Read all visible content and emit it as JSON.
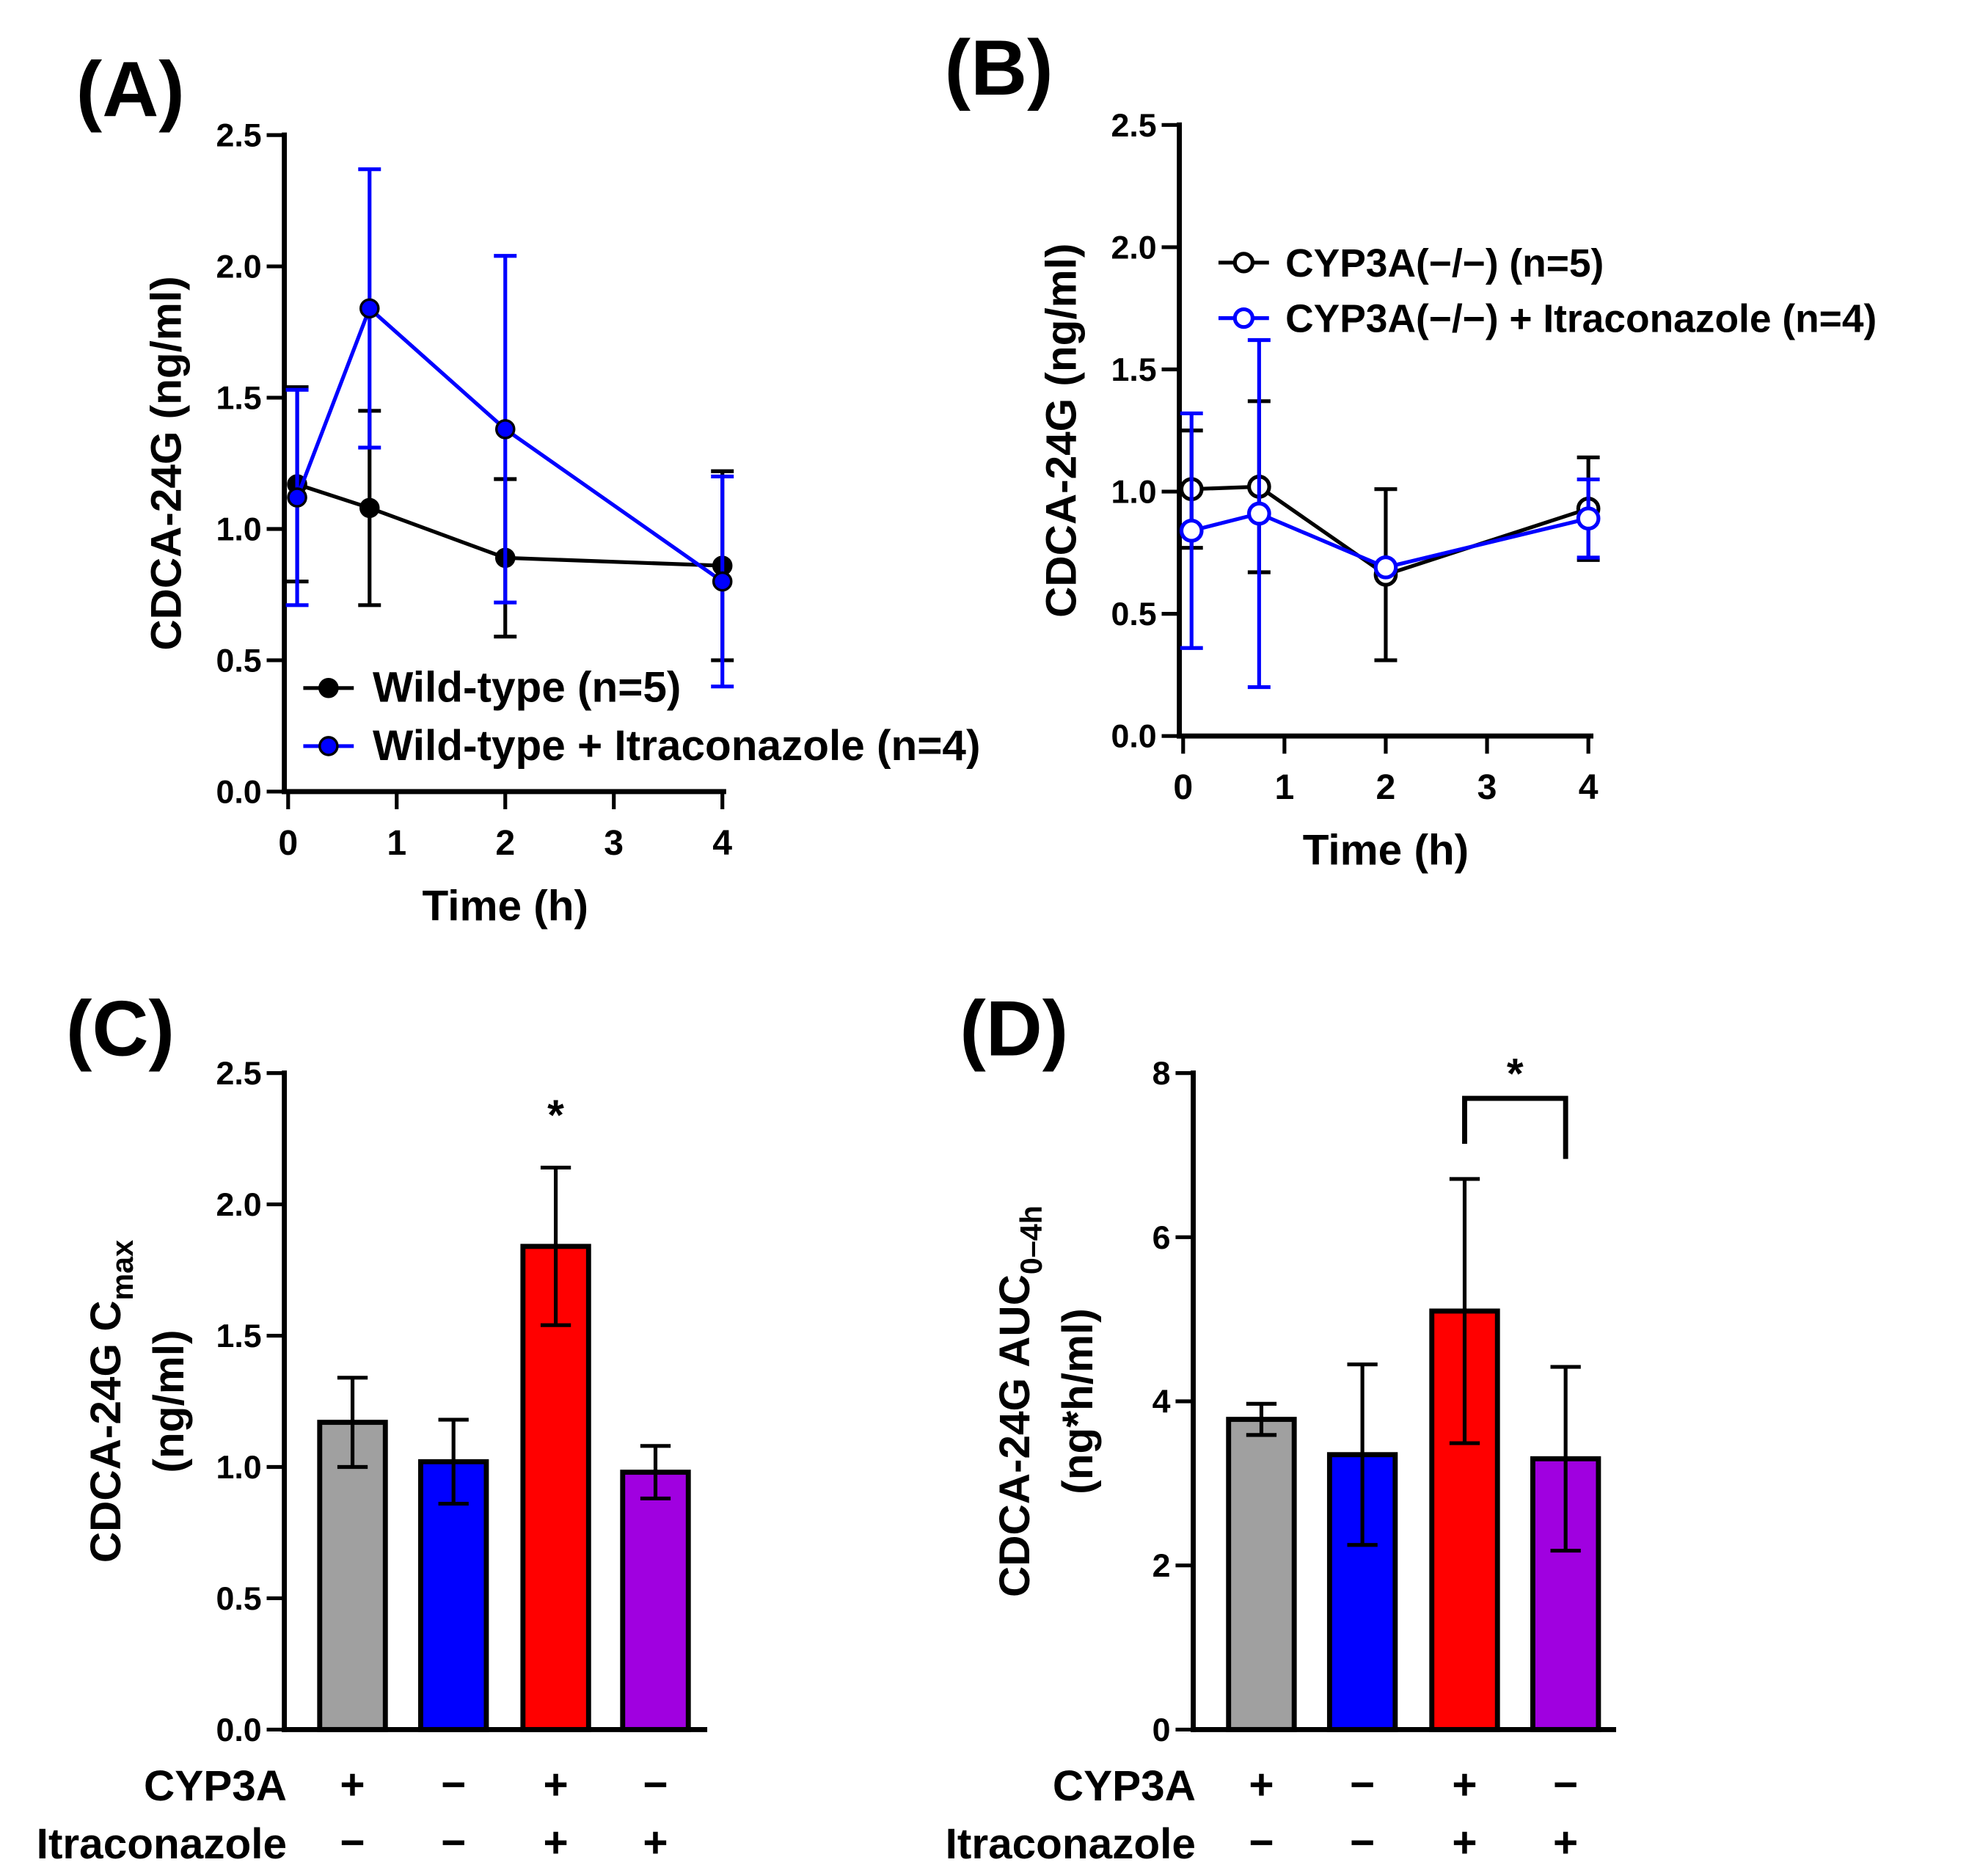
{
  "colors": {
    "black": "#000000",
    "blue": "#0000ff",
    "gray": "#a0a0a0",
    "red": "#ff0000",
    "purple": "#a000e0"
  },
  "chart_data": [
    {
      "panel": "(A)",
      "type": "line",
      "xlabel": "Time (h)",
      "ylabel": "CDCA-24G (ng/ml)",
      "xlim": [
        0,
        4
      ],
      "ylim": [
        0,
        2.5
      ],
      "xticks": [
        "0",
        "1",
        "2",
        "3",
        "4"
      ],
      "yticks": [
        "0.0",
        "0.5",
        "1.0",
        "1.5",
        "2.0",
        "2.5"
      ],
      "legend_position": "bottom",
      "x": [
        0.083,
        0.75,
        2,
        4
      ],
      "series": [
        {
          "name": "Wild-type (n=5)",
          "color": "#000000",
          "marker": "filled",
          "values": [
            1.17,
            1.08,
            0.89,
            0.86
          ],
          "error": [
            0.37,
            0.37,
            0.3,
            0.36
          ]
        },
        {
          "name": "Wild-type + Itraconazole (n=4)",
          "color": "#0000ff",
          "marker": "filled",
          "values": [
            1.12,
            1.84,
            1.38,
            0.8
          ],
          "error": [
            0.41,
            0.53,
            0.66,
            0.4
          ]
        }
      ]
    },
    {
      "panel": "(B)",
      "type": "line",
      "xlabel": "Time (h)",
      "ylabel": "CDCA-24G (ng/ml)",
      "xlim": [
        0,
        4
      ],
      "ylim": [
        0,
        2.5
      ],
      "xticks": [
        "0",
        "1",
        "2",
        "3",
        "4"
      ],
      "yticks": [
        "0.0",
        "0.5",
        "1.0",
        "1.5",
        "2.0",
        "2.5"
      ],
      "legend_position": "top-right",
      "x": [
        0.083,
        0.75,
        2,
        4
      ],
      "series": [
        {
          "name": "CYP3A(−/−) (n=5)",
          "color": "#000000",
          "marker": "open",
          "values": [
            1.01,
            1.02,
            0.66,
            0.93
          ],
          "error": [
            0.24,
            0.35,
            0.35,
            0.21
          ]
        },
        {
          "name": "CYP3A(−/−) + Itraconazole (n=4)",
          "color": "#0000ff",
          "marker": "open",
          "values": [
            0.84,
            0.91,
            0.69,
            0.89
          ],
          "error": [
            0.48,
            0.71,
            0.0,
            0.16
          ]
        }
      ]
    },
    {
      "panel": "(C)",
      "type": "bar",
      "ylabel": "CDCA-24G C",
      "ylabel_sub": "max",
      "ylabel2": "(ng/ml)",
      "ylim": [
        0,
        2.5
      ],
      "yticks": [
        "0.0",
        "0.5",
        "1.0",
        "1.5",
        "2.0",
        "2.5"
      ],
      "row_labels": [
        "CYP3A",
        "Itraconazole"
      ],
      "categories": [
        [
          "+",
          "−"
        ],
        [
          "−",
          "−"
        ],
        [
          "+",
          "+"
        ],
        [
          "−",
          "+"
        ]
      ],
      "values": [
        1.17,
        1.02,
        1.84,
        0.98
      ],
      "error": [
        0.17,
        0.16,
        0.3,
        0.1
      ],
      "bar_colors": [
        "#a0a0a0",
        "#0000ff",
        "#ff0000",
        "#a000e0"
      ],
      "annotation": "*"
    },
    {
      "panel": "(D)",
      "type": "bar",
      "ylabel": "CDCA-24G AUC",
      "ylabel_sub": "0–4h",
      "ylabel2": "(ng*h/ml)",
      "ylim": [
        0,
        8
      ],
      "yticks": [
        "0",
        "2",
        "4",
        "6",
        "8"
      ],
      "row_labels": [
        "CYP3A",
        "Itraconazole"
      ],
      "categories": [
        [
          "+",
          "−"
        ],
        [
          "−",
          "−"
        ],
        [
          "+",
          "+"
        ],
        [
          "−",
          "+"
        ]
      ],
      "values": [
        3.78,
        3.35,
        5.1,
        3.3
      ],
      "error": [
        0.19,
        1.1,
        1.61,
        1.12
      ],
      "bar_colors": [
        "#a0a0a0",
        "#0000ff",
        "#ff0000",
        "#a000e0"
      ],
      "annotation": "*"
    }
  ]
}
